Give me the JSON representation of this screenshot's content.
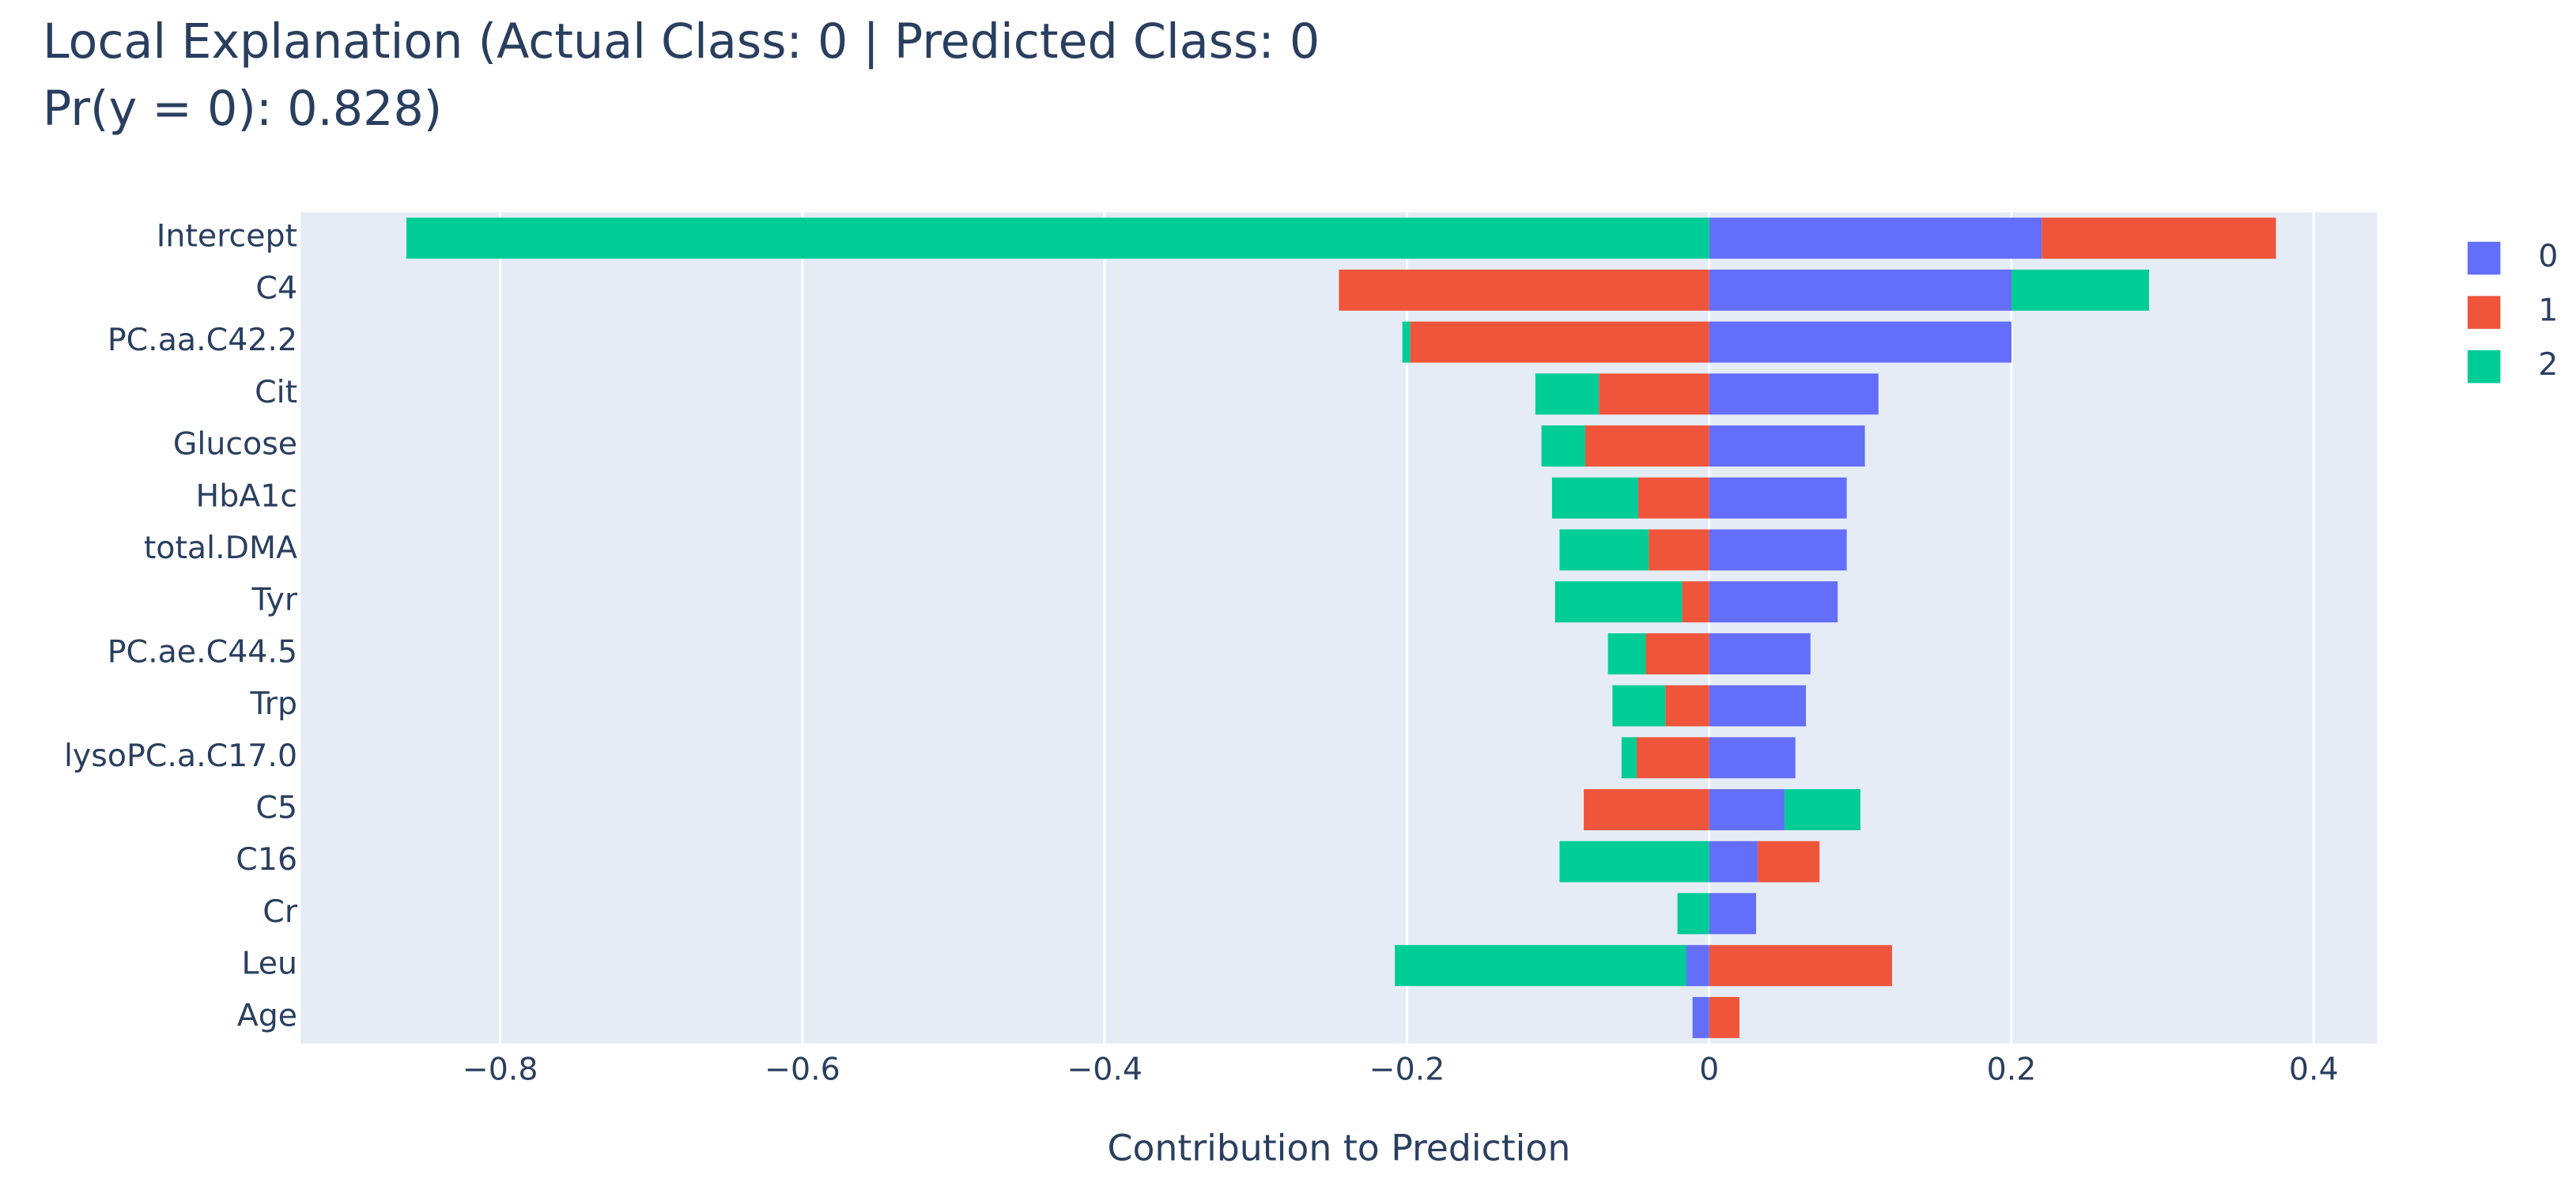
{
  "chart_data": {
    "type": "bar",
    "orientation": "horizontal",
    "barmode": "relative",
    "title": [
      "Local Explanation (Actual Class: 0 | Predicted Class: 0",
      "Pr(y = 0): 0.828)"
    ],
    "x_label": "Contribution to Prediction",
    "categories": [
      "Intercept",
      "C4",
      "PC.aa.C42.2",
      "Cit",
      "Glucose",
      "HbA1c",
      "total.DMA",
      "Tyr",
      "PC.ae.C44.5",
      "Trp",
      "lysoPC.a.C17.0",
      "C5",
      "C16",
      "Cr",
      "Leu",
      "Age"
    ],
    "series": [
      {
        "name": "0",
        "color": "#636efa",
        "values": [
          0.22,
          0.2,
          0.2,
          0.112,
          0.103,
          0.091,
          0.091,
          0.085,
          0.067,
          0.064,
          0.057,
          0.05,
          0.032,
          0.031,
          -0.015,
          -0.011
        ]
      },
      {
        "name": "1",
        "color": "#ef553b",
        "values": [
          0.155,
          -0.245,
          -0.198,
          -0.073,
          -0.082,
          -0.047,
          -0.04,
          -0.018,
          -0.042,
          -0.029,
          -0.048,
          -0.083,
          0.041,
          0,
          0.121,
          0.02
        ]
      },
      {
        "name": "2",
        "color": "#00cc96",
        "values": [
          -0.862,
          0.091,
          -0.005,
          -0.042,
          -0.029,
          -0.057,
          -0.059,
          -0.084,
          -0.025,
          -0.035,
          -0.01,
          0.05,
          -0.099,
          -0.021,
          -0.193,
          0
        ]
      }
    ],
    "xlim": [
      -0.932,
      0.442
    ],
    "xticks": [
      {
        "value": -0.8,
        "label": "−0.8"
      },
      {
        "value": -0.6,
        "label": "−0.6"
      },
      {
        "value": -0.4,
        "label": "−0.4"
      },
      {
        "value": -0.2,
        "label": "−0.2"
      },
      0,
      0.2,
      0.4
    ],
    "grid": true,
    "legend": "right"
  }
}
